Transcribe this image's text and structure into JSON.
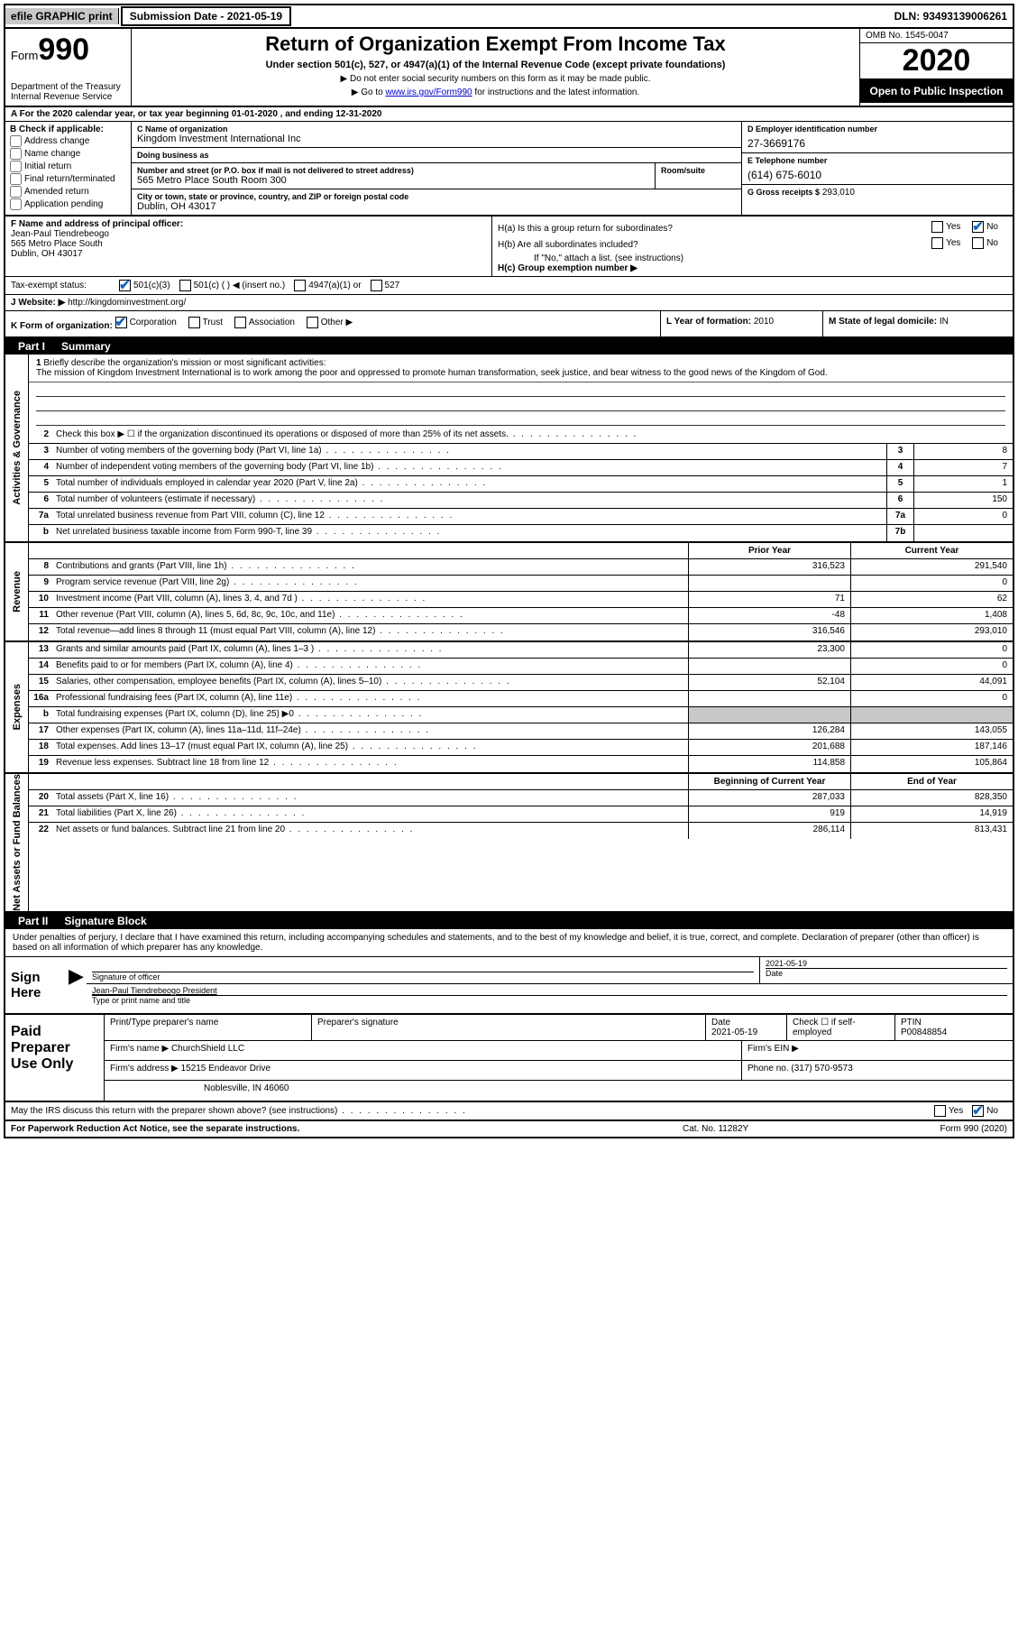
{
  "colors": {
    "link": "#0000cc",
    "shade": "#c8c8c8",
    "check": "#1565c0"
  },
  "topbar": {
    "efile": "efile GRAPHIC print",
    "submission": "Submission Date - 2021-05-19",
    "dln": "DLN: 93493139006261"
  },
  "header": {
    "form_small": "Form",
    "form_big": "990",
    "dept": "Department of the Treasury\nInternal Revenue Service",
    "title": "Return of Organization Exempt From Income Tax",
    "sub": "Under section 501(c), 527, or 4947(a)(1) of the Internal Revenue Code (except private foundations)",
    "note1": "▶ Do not enter social security numbers on this form as it may be made public.",
    "note2_pre": "▶ Go to ",
    "note2_link": "www.irs.gov/Form990",
    "note2_post": " for instructions and the latest information.",
    "omb": "OMB No. 1545-0047",
    "year": "2020",
    "open": "Open to Public Inspection"
  },
  "secA": "A For the 2020 calendar year, or tax year beginning 01-01-2020   , and ending 12-31-2020",
  "B": {
    "label": "B Check if applicable:",
    "items": [
      "Address change",
      "Name change",
      "Initial return",
      "Final return/terminated",
      "Amended return",
      "Application pending"
    ]
  },
  "C": {
    "name_lbl": "C Name of organization",
    "name": "Kingdom Investment International Inc",
    "dba_lbl": "Doing business as",
    "dba": "",
    "street_lbl": "Number and street (or P.O. box if mail is not delivered to street address)",
    "room_lbl": "Room/suite",
    "street": "565 Metro Place South Room 300",
    "city_lbl": "City or town, state or province, country, and ZIP or foreign postal code",
    "city": "Dublin, OH  43017"
  },
  "D": {
    "lbl": "D Employer identification number",
    "val": "27-3669176"
  },
  "E": {
    "lbl": "E Telephone number",
    "val": "(614) 675-6010"
  },
  "G": {
    "lbl": "G Gross receipts $",
    "val": "293,010"
  },
  "F": {
    "lbl": "F  Name and address of principal officer:",
    "name": "Jean-Paul Tiendrebeogo",
    "addr1": "565 Metro Place South",
    "addr2": "Dublin, OH  43017"
  },
  "H": {
    "a": "H(a)  Is this a group return for subordinates?",
    "b": "H(b)  Are all subordinates included?",
    "note": "If \"No,\" attach a list. (see instructions)",
    "c": "H(c)  Group exemption number ▶",
    "yes": "Yes",
    "no": "No"
  },
  "I": {
    "lbl": "Tax-exempt status:",
    "opts": [
      "501(c)(3)",
      "501(c) (  ) ◀ (insert no.)",
      "4947(a)(1) or",
      "527"
    ]
  },
  "J": {
    "lbl": "J",
    "text": "Website: ▶",
    "url": "http://kingdominvestment.org/"
  },
  "K": {
    "lbl": "K Form of organization:",
    "opts": [
      "Corporation",
      "Trust",
      "Association",
      "Other ▶"
    ]
  },
  "L": {
    "lbl": "L Year of formation:",
    "val": "2010"
  },
  "M": {
    "lbl": "M State of legal domicile:",
    "val": "IN"
  },
  "part1": {
    "num": "Part I",
    "title": "Summary"
  },
  "briefly": {
    "num": "1",
    "lead": "Briefly describe the organization's mission or most significant activities:",
    "text": "The mission of Kingdom Investment International is to work among the poor and oppressed to promote human transformation, seek justice, and bear witness to the good news of the Kingdom of God."
  },
  "gov_lines": [
    {
      "n": "2",
      "d": "Check this box ▶ ☐  if the organization discontinued its operations or disposed of more than 25% of its net assets."
    },
    {
      "n": "3",
      "d": "Number of voting members of the governing body (Part VI, line 1a)",
      "box": "3",
      "v": "8"
    },
    {
      "n": "4",
      "d": "Number of independent voting members of the governing body (Part VI, line 1b)",
      "box": "4",
      "v": "7"
    },
    {
      "n": "5",
      "d": "Total number of individuals employed in calendar year 2020 (Part V, line 2a)",
      "box": "5",
      "v": "1"
    },
    {
      "n": "6",
      "d": "Total number of volunteers (estimate if necessary)",
      "box": "6",
      "v": "150"
    },
    {
      "n": "7a",
      "d": "Total unrelated business revenue from Part VIII, column (C), line 12",
      "box": "7a",
      "v": "0"
    },
    {
      "n": "b",
      "d": "Net unrelated business taxable income from Form 990-T, line 39",
      "box": "7b",
      "v": ""
    }
  ],
  "two_hdr": {
    "prior": "Prior Year",
    "current": "Current Year"
  },
  "revenue": [
    {
      "n": "8",
      "d": "Contributions and grants (Part VIII, line 1h)",
      "p": "316,523",
      "c": "291,540"
    },
    {
      "n": "9",
      "d": "Program service revenue (Part VIII, line 2g)",
      "p": "",
      "c": "0"
    },
    {
      "n": "10",
      "d": "Investment income (Part VIII, column (A), lines 3, 4, and 7d )",
      "p": "71",
      "c": "62"
    },
    {
      "n": "11",
      "d": "Other revenue (Part VIII, column (A), lines 5, 6d, 8c, 9c, 10c, and 11e)",
      "p": "-48",
      "c": "1,408"
    },
    {
      "n": "12",
      "d": "Total revenue—add lines 8 through 11 (must equal Part VIII, column (A), line 12)",
      "p": "316,546",
      "c": "293,010"
    }
  ],
  "expenses": [
    {
      "n": "13",
      "d": "Grants and similar amounts paid (Part IX, column (A), lines 1–3 )",
      "p": "23,300",
      "c": "0"
    },
    {
      "n": "14",
      "d": "Benefits paid to or for members (Part IX, column (A), line 4)",
      "p": "",
      "c": "0"
    },
    {
      "n": "15",
      "d": "Salaries, other compensation, employee benefits (Part IX, column (A), lines 5–10)",
      "p": "52,104",
      "c": "44,091"
    },
    {
      "n": "16a",
      "d": "Professional fundraising fees (Part IX, column (A), line 11e)",
      "p": "",
      "c": "0"
    },
    {
      "n": "b",
      "d": "Total fundraising expenses (Part IX, column (D), line 25) ▶0",
      "shaded": true
    },
    {
      "n": "17",
      "d": "Other expenses (Part IX, column (A), lines 11a–11d, 11f–24e)",
      "p": "126,284",
      "c": "143,055"
    },
    {
      "n": "18",
      "d": "Total expenses. Add lines 13–17 (must equal Part IX, column (A), line 25)",
      "p": "201,688",
      "c": "187,146"
    },
    {
      "n": "19",
      "d": "Revenue less expenses. Subtract line 18 from line 12",
      "p": "114,858",
      "c": "105,864"
    }
  ],
  "na_hdr": {
    "begin": "Beginning of Current Year",
    "end": "End of Year"
  },
  "netassets": [
    {
      "n": "20",
      "d": "Total assets (Part X, line 16)",
      "p": "287,033",
      "c": "828,350"
    },
    {
      "n": "21",
      "d": "Total liabilities (Part X, line 26)",
      "p": "919",
      "c": "14,919"
    },
    {
      "n": "22",
      "d": "Net assets or fund balances. Subtract line 21 from line 20",
      "p": "286,114",
      "c": "813,431"
    }
  ],
  "sidelabels": {
    "gov": "Activities & Governance",
    "rev": "Revenue",
    "exp": "Expenses",
    "na": "Net Assets or Fund Balances"
  },
  "part2": {
    "num": "Part II",
    "title": "Signature Block"
  },
  "sig": {
    "decl": "Under penalties of perjury, I declare that I have examined this return, including accompanying schedules and statements, and to the best of my knowledge and belief, it is true, correct, and complete. Declaration of preparer (other than officer) is based on all information of which preparer has any knowledge.",
    "here": "Sign Here",
    "sig_lbl": "Signature of officer",
    "date_lbl": "Date",
    "date": "2021-05-19",
    "name": "Jean-Paul Tiendrebeogo President",
    "name_lbl": "Type or print name and title"
  },
  "prep": {
    "title": "Paid Preparer Use Only",
    "r1": {
      "c1": "Print/Type preparer's name",
      "c2": "Preparer's signature",
      "c3_lbl": "Date",
      "c3": "2021-05-19",
      "c4": "Check ☐ if self-employed",
      "c5_lbl": "PTIN",
      "c5": "P00848854"
    },
    "r2": {
      "lbl": "Firm's name   ▶",
      "val": "ChurchShield LLC",
      "ein": "Firm's EIN ▶"
    },
    "r3": {
      "lbl": "Firm's address ▶",
      "val": "15215 Endeavor Drive",
      "ph_lbl": "Phone no.",
      "ph": "(317) 570-9573"
    },
    "r4": {
      "val": "Noblesville, IN  46060"
    }
  },
  "discuss": {
    "q": "May the IRS discuss this return with the preparer shown above? (see instructions)",
    "yes": "Yes",
    "no": "No"
  },
  "footer": {
    "left": "For Paperwork Reduction Act Notice, see the separate instructions.",
    "mid": "Cat. No. 11282Y",
    "right": "Form 990 (2020)"
  }
}
